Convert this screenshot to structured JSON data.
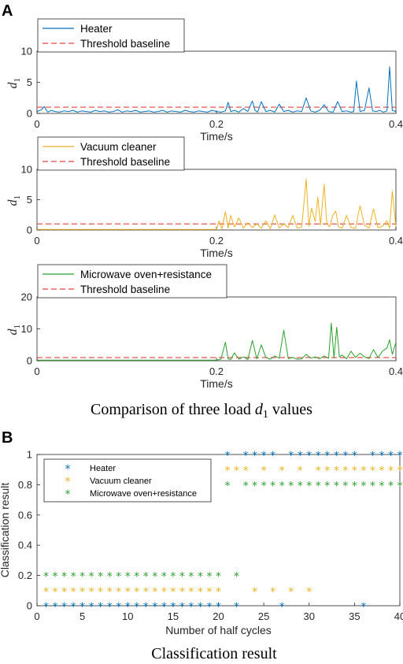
{
  "panel_a_label": "A",
  "panel_b_label": "B",
  "caption_a": {
    "prefix": "Comparison of  three load ",
    "var": "d",
    "sub": "1",
    "suffix": " values"
  },
  "caption_b": "Classification result",
  "colors": {
    "heater": "#0072BD",
    "vacuum": "#EDB120",
    "microwave": "#2CA02C",
    "threshold": "#E8403C",
    "axis": "#262626"
  },
  "chart_data": [
    {
      "type": "line",
      "xlabel": "Time/s",
      "ylabel_var": "d",
      "ylabel_sub": "1",
      "xlim": [
        0,
        0.4
      ],
      "ylim": [
        0,
        10
      ],
      "xticks": [
        0,
        0.2,
        0.4
      ],
      "xtick_labels": [
        "0",
        "0.2",
        "0.4"
      ],
      "yticks": [
        0,
        5,
        10
      ],
      "ytick_labels": [
        "0",
        "5",
        "10"
      ],
      "legend_position": "top-left",
      "threshold": 1,
      "series": [
        {
          "name": "Heater",
          "color": "#0072BD",
          "kind": "line"
        },
        {
          "name": "Threshold baseline",
          "color": "#E8403C",
          "kind": "dashed"
        }
      ],
      "x": [
        0,
        0.005,
        0.008,
        0.012,
        0.016,
        0.02,
        0.025,
        0.03,
        0.035,
        0.04,
        0.045,
        0.05,
        0.055,
        0.06,
        0.065,
        0.07,
        0.075,
        0.08,
        0.085,
        0.09,
        0.095,
        0.1,
        0.105,
        0.11,
        0.115,
        0.12,
        0.125,
        0.13,
        0.135,
        0.14,
        0.145,
        0.15,
        0.155,
        0.16,
        0.165,
        0.17,
        0.175,
        0.18,
        0.185,
        0.19,
        0.195,
        0.2,
        0.205,
        0.21,
        0.213,
        0.216,
        0.22,
        0.225,
        0.23,
        0.235,
        0.24,
        0.243,
        0.246,
        0.25,
        0.255,
        0.26,
        0.265,
        0.27,
        0.275,
        0.28,
        0.285,
        0.29,
        0.295,
        0.3,
        0.305,
        0.31,
        0.315,
        0.32,
        0.325,
        0.33,
        0.335,
        0.34,
        0.345,
        0.35,
        0.353,
        0.356,
        0.36,
        0.365,
        0.37,
        0.374,
        0.378,
        0.382,
        0.386,
        0.39,
        0.393,
        0.396,
        0.4
      ],
      "values": [
        0.3,
        0.6,
        1.1,
        0.2,
        0.5,
        0.3,
        0.2,
        0.4,
        0.3,
        0.5,
        0.2,
        0.4,
        0.3,
        0.2,
        0.5,
        0.3,
        0.4,
        0.2,
        0.3,
        0.6,
        0.2,
        0.4,
        0.3,
        0.5,
        0.2,
        0.3,
        0.4,
        0.2,
        0.3,
        0.5,
        0.2,
        0.4,
        0.3,
        0.2,
        0.5,
        0.3,
        0.2,
        0.4,
        0.3,
        0.2,
        0.5,
        0.3,
        0.2,
        0.4,
        1.8,
        0.3,
        0.5,
        0.2,
        0.8,
        0.3,
        2.0,
        0.5,
        0.2,
        1.9,
        0.3,
        0.5,
        0.2,
        1.5,
        0.3,
        0.5,
        0.2,
        0.4,
        0.3,
        2.5,
        0.4,
        0.2,
        0.5,
        1.4,
        0.3,
        0.2,
        1.9,
        0.3,
        0.4,
        0.2,
        0.3,
        5.2,
        0.3,
        0.5,
        4.1,
        0.4,
        0.3,
        0.5,
        0.2,
        0.4,
        7.5,
        0.5,
        0.3
      ]
    },
    {
      "type": "line",
      "xlabel": "Time/s",
      "ylabel_var": "d",
      "ylabel_sub": "1",
      "xlim": [
        0,
        0.4
      ],
      "ylim": [
        0,
        10
      ],
      "xticks": [
        0,
        0.2,
        0.4
      ],
      "xtick_labels": [
        "0",
        "0.2",
        "0.4"
      ],
      "yticks": [
        0,
        5,
        10
      ],
      "ytick_labels": [
        "0",
        "5",
        "10"
      ],
      "legend_position": "top-left",
      "threshold": 1,
      "series": [
        {
          "name": "Vacuum cleaner",
          "color": "#EDB120",
          "kind": "line"
        },
        {
          "name": "Threshold baseline",
          "color": "#E8403C",
          "kind": "dashed"
        }
      ],
      "x": [
        0,
        0.02,
        0.05,
        0.08,
        0.1,
        0.13,
        0.16,
        0.19,
        0.2,
        0.203,
        0.206,
        0.21,
        0.213,
        0.216,
        0.22,
        0.225,
        0.23,
        0.235,
        0.24,
        0.245,
        0.25,
        0.255,
        0.26,
        0.265,
        0.27,
        0.275,
        0.28,
        0.285,
        0.29,
        0.295,
        0.3,
        0.303,
        0.306,
        0.31,
        0.313,
        0.316,
        0.32,
        0.323,
        0.326,
        0.33,
        0.333,
        0.336,
        0.34,
        0.345,
        0.35,
        0.355,
        0.36,
        0.365,
        0.37,
        0.375,
        0.38,
        0.385,
        0.39,
        0.393,
        0.396,
        0.4
      ],
      "values": [
        0.1,
        0.1,
        0.1,
        0.1,
        0.1,
        0.1,
        0.1,
        0.1,
        0.1,
        1.5,
        0.2,
        3.0,
        0.3,
        2.4,
        0.5,
        2.0,
        0.3,
        1.2,
        0.4,
        1.0,
        0.3,
        1.5,
        0.2,
        2.5,
        0.3,
        1.0,
        0.4,
        2.4,
        0.3,
        0.5,
        8.4,
        0.6,
        3.6,
        1.4,
        5.4,
        0.8,
        7.5,
        1.1,
        0.5,
        2.5,
        3.1,
        0.5,
        0.3,
        2.4,
        0.4,
        0.3,
        4.0,
        0.8,
        0.3,
        3.5,
        0.4,
        0.6,
        1.5,
        0.3,
        6.4,
        0.5
      ]
    },
    {
      "type": "line",
      "xlabel": "Time/s",
      "ylabel_var": "d",
      "ylabel_sub": "1",
      "xlim": [
        0,
        0.4
      ],
      "ylim": [
        0,
        20
      ],
      "xticks": [
        0,
        0.2,
        0.4
      ],
      "xtick_labels": [
        "0",
        "0.2",
        "0.4"
      ],
      "yticks": [
        0,
        10,
        20
      ],
      "ytick_labels": [
        "0",
        "10",
        "20"
      ],
      "legend_position": "top-left",
      "threshold": 1,
      "series": [
        {
          "name": "Microwave oven+resistance",
          "color": "#2CA02C",
          "kind": "line"
        },
        {
          "name": "Threshold baseline",
          "color": "#E8403C",
          "kind": "dashed"
        }
      ],
      "x": [
        0,
        0.03,
        0.06,
        0.1,
        0.14,
        0.18,
        0.2,
        0.205,
        0.21,
        0.213,
        0.216,
        0.22,
        0.225,
        0.23,
        0.235,
        0.24,
        0.245,
        0.25,
        0.255,
        0.26,
        0.265,
        0.27,
        0.275,
        0.28,
        0.285,
        0.29,
        0.295,
        0.3,
        0.305,
        0.31,
        0.315,
        0.32,
        0.325,
        0.328,
        0.331,
        0.334,
        0.337,
        0.34,
        0.345,
        0.35,
        0.355,
        0.36,
        0.365,
        0.37,
        0.375,
        0.38,
        0.385,
        0.39,
        0.393,
        0.396,
        0.4
      ],
      "values": [
        0.2,
        0.2,
        0.2,
        0.2,
        0.2,
        0.2,
        0.2,
        0.5,
        5.8,
        0.6,
        0.4,
        2.5,
        0.5,
        1.2,
        0.4,
        6.4,
        0.6,
        5.0,
        1.0,
        0.5,
        1.5,
        0.8,
        9.6,
        0.7,
        1.0,
        0.5,
        0.6,
        2.0,
        0.8,
        1.2,
        0.6,
        1.5,
        0.8,
        11.8,
        0.9,
        10.5,
        1.2,
        1.8,
        0.6,
        3.0,
        1.0,
        2.4,
        1.2,
        0.7,
        3.5,
        1.0,
        3.0,
        4.0,
        6.6,
        2.0,
        5.8
      ]
    },
    {
      "type": "scatter",
      "xlabel": "Number of half cycles",
      "ylabel": "Classification result",
      "xlim": [
        0,
        40
      ],
      "ylim": [
        0,
        1
      ],
      "xticks": [
        0,
        5,
        10,
        15,
        20,
        25,
        30,
        35,
        40
      ],
      "xtick_labels": [
        "0",
        "5",
        "10",
        "15",
        "20",
        "25",
        "30",
        "35",
        "40"
      ],
      "yticks": [
        0,
        0.2,
        0.4,
        0.6,
        0.8,
        1
      ],
      "ytick_labels": [
        "0",
        "0.2",
        "0.4",
        "0.6",
        "0.8",
        "1"
      ],
      "legend_position": "top-left",
      "marker": "*",
      "series": [
        {
          "name": "Heater",
          "color": "#0072BD",
          "x": [
            1,
            2,
            3,
            4,
            5,
            6,
            7,
            8,
            9,
            10,
            11,
            12,
            13,
            14,
            15,
            16,
            17,
            18,
            19,
            20,
            21,
            22,
            23,
            24,
            25,
            26,
            27,
            28,
            29,
            30,
            31,
            32,
            33,
            34,
            35,
            36,
            37,
            38,
            39,
            40
          ],
          "values": [
            0,
            0,
            0,
            0,
            0,
            0,
            0,
            0,
            0,
            0,
            0,
            0,
            0,
            0,
            0,
            0,
            0,
            0,
            0,
            0,
            1,
            0,
            1,
            1,
            1,
            1,
            0,
            1,
            1,
            1,
            1,
            1,
            1,
            1,
            1,
            0,
            1,
            1,
            1,
            1
          ]
        },
        {
          "name": "Vacuum cleaner",
          "color": "#EDB120",
          "x": [
            1,
            2,
            3,
            4,
            5,
            6,
            7,
            8,
            9,
            10,
            11,
            12,
            13,
            14,
            15,
            16,
            17,
            18,
            19,
            20,
            21,
            22,
            24,
            26,
            28,
            30,
            23,
            25,
            27,
            29,
            31,
            32,
            33,
            34,
            35,
            36,
            37,
            38,
            39,
            40
          ],
          "values": [
            0.1,
            0.1,
            0.1,
            0.1,
            0.1,
            0.1,
            0.1,
            0.1,
            0.1,
            0.1,
            0.1,
            0.1,
            0.1,
            0.1,
            0.1,
            0.1,
            0.1,
            0.1,
            0.1,
            0.1,
            0.9,
            0.9,
            0.1,
            0.1,
            0.1,
            0.1,
            0.9,
            0.9,
            0.9,
            0.9,
            0.9,
            0.9,
            0.9,
            0.9,
            0.9,
            0.9,
            0.9,
            0.9,
            0.9,
            0.9
          ]
        },
        {
          "name": "Microwave oven+resistance",
          "color": "#2CA02C",
          "x": [
            1,
            2,
            3,
            4,
            5,
            6,
            7,
            8,
            9,
            10,
            11,
            12,
            13,
            14,
            15,
            16,
            17,
            18,
            19,
            20,
            21,
            22,
            23,
            24,
            25,
            26,
            27,
            28,
            29,
            30,
            31,
            32,
            33,
            34,
            35,
            36,
            37,
            38,
            39,
            40
          ],
          "values": [
            0.2,
            0.2,
            0.2,
            0.2,
            0.2,
            0.2,
            0.2,
            0.2,
            0.2,
            0.2,
            0.2,
            0.2,
            0.2,
            0.2,
            0.2,
            0.2,
            0.2,
            0.2,
            0.2,
            0.2,
            0.8,
            0.2,
            0.8,
            0.8,
            0.8,
            0.8,
            0.8,
            0.8,
            0.8,
            0.8,
            0.8,
            0.8,
            0.8,
            0.8,
            0.8,
            0.8,
            0.8,
            0.8,
            0.8,
            0.8
          ]
        }
      ]
    }
  ]
}
